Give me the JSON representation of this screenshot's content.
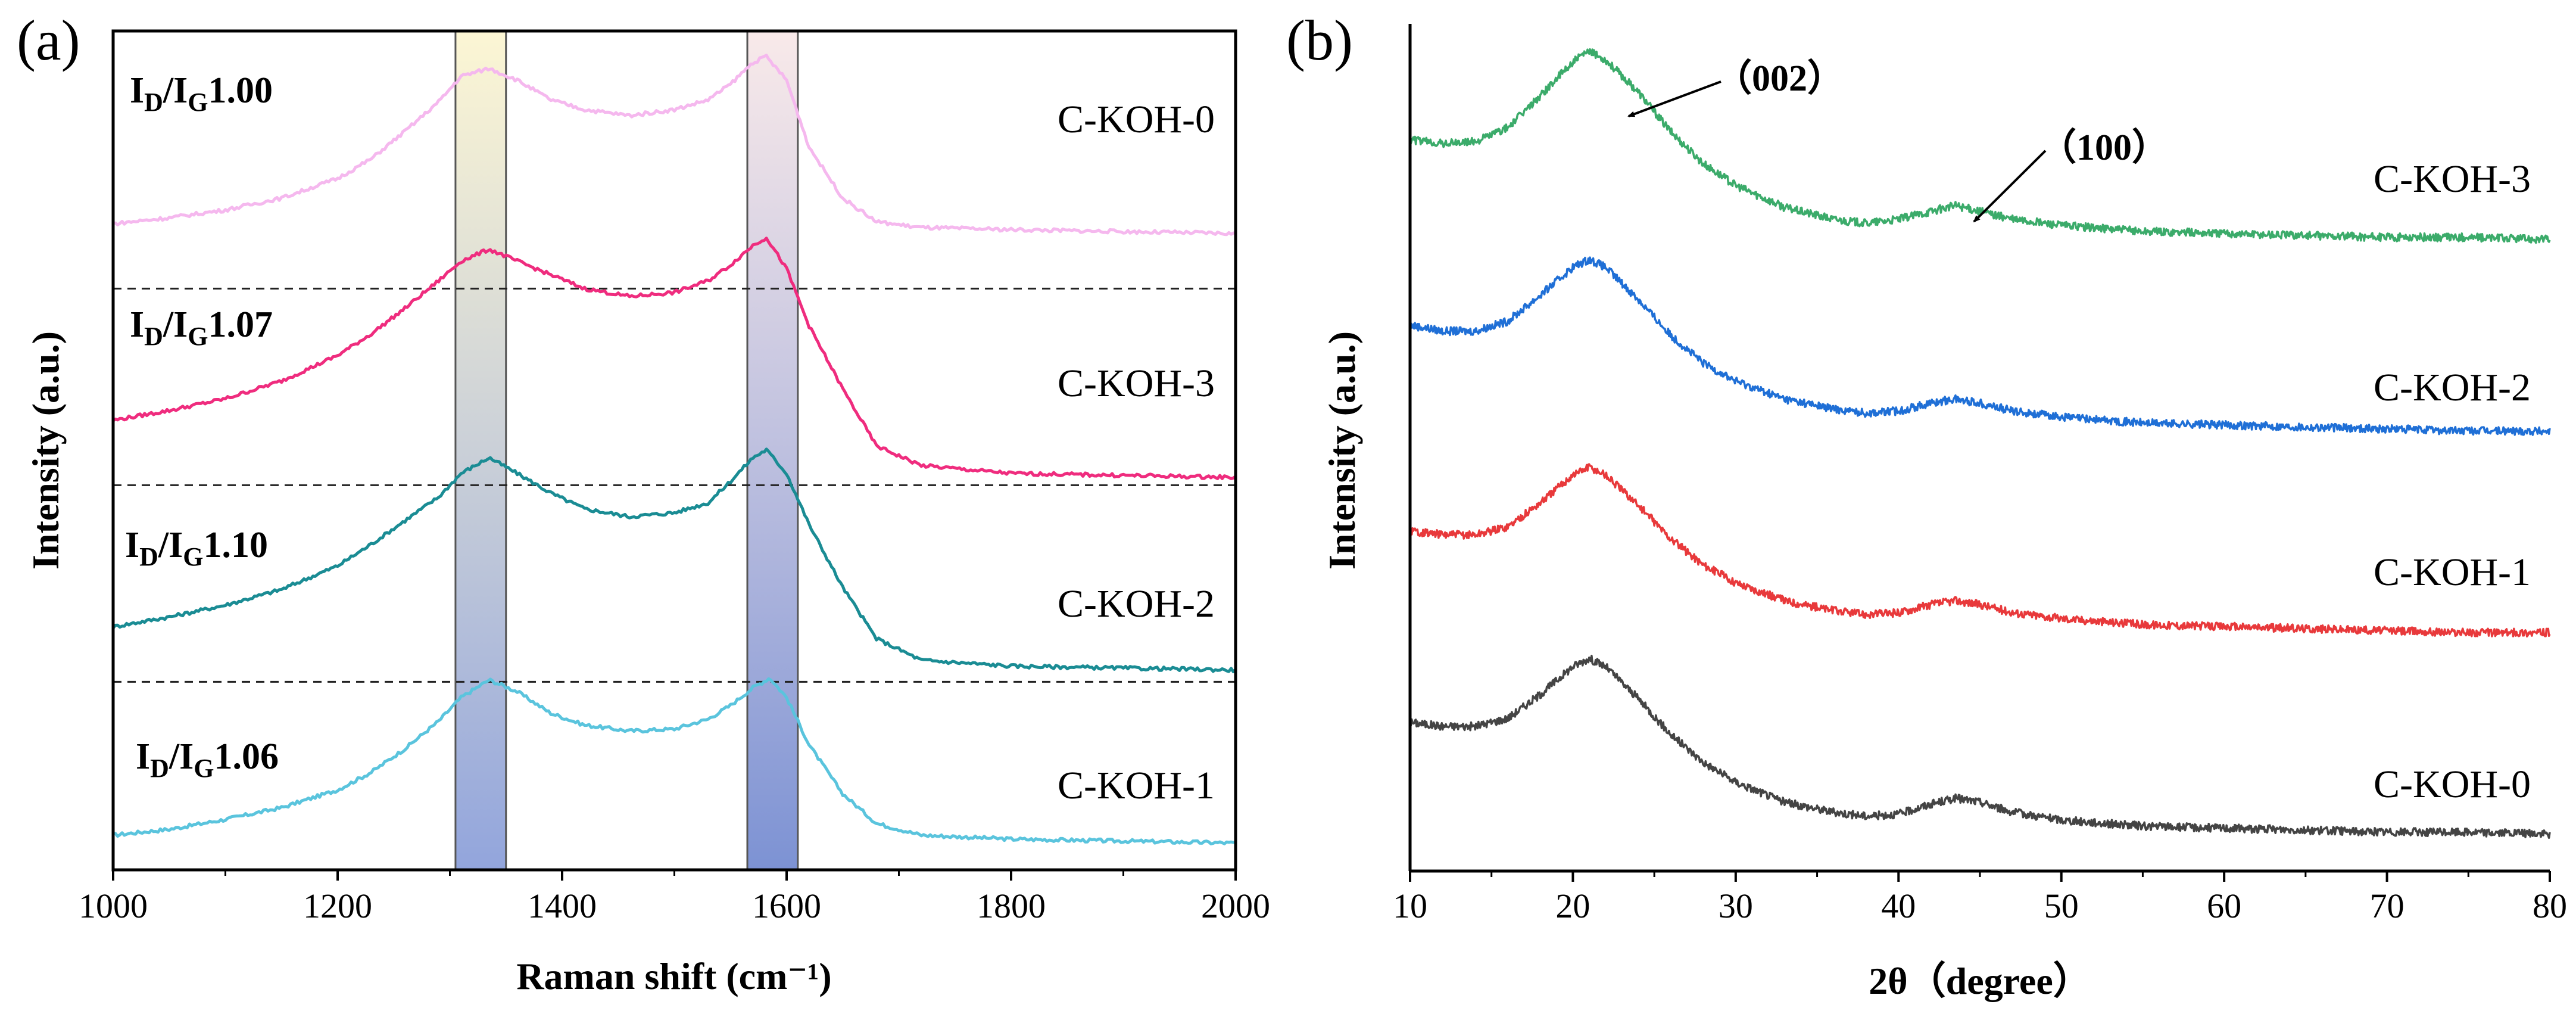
{
  "chart_data": [
    {
      "panel": "(a)",
      "type": "line",
      "xlabel": "Raman shift (cm⁻¹)",
      "ylabel": "Intensity (a.u.)",
      "xlim": [
        1000,
        2000
      ],
      "xticks": [
        "1000",
        "1200",
        "1400",
        "1600",
        "1800",
        "2000"
      ],
      "ylim": [
        0,
        4
      ],
      "grid": false,
      "legend": "none",
      "bands": [
        {
          "name": "D band",
          "from": 1305,
          "to": 1350
        },
        {
          "name": "G band",
          "from": 1565,
          "to": 1610
        }
      ],
      "baselines": [
        0.82,
        1.82,
        2.82
      ],
      "series": [
        {
          "name": "C-KOH-1",
          "ratio_prefix": "I",
          "ratio_sub1": "D",
          "ratio_mid": "/I",
          "ratio_sub2": "G",
          "ratio_value": "1.06",
          "color": "#5ac4dd",
          "x": [
            1000,
            1050,
            1100,
            1150,
            1200,
            1230,
            1260,
            1290,
            1310,
            1335,
            1360,
            1390,
            1420,
            1460,
            1500,
            1530,
            1550,
            1570,
            1585,
            1600,
            1620,
            1650,
            1680,
            1720,
            1800,
            1900,
            2000
          ],
          "y": [
            0.04,
            0.07,
            0.12,
            0.18,
            0.27,
            0.36,
            0.48,
            0.62,
            0.74,
            0.83,
            0.77,
            0.66,
            0.6,
            0.57,
            0.58,
            0.63,
            0.7,
            0.79,
            0.84,
            0.74,
            0.5,
            0.25,
            0.1,
            0.04,
            0.02,
            0.01,
            0.0
          ]
        },
        {
          "name": "C-KOH-2",
          "ratio_prefix": "I",
          "ratio_sub1": "D",
          "ratio_mid": "/I",
          "ratio_sub2": "G",
          "ratio_value": "1.10",
          "color": "#1a8c94",
          "x": [
            1000,
            1050,
            1100,
            1150,
            1200,
            1230,
            1260,
            1290,
            1310,
            1335,
            1360,
            1390,
            1420,
            1460,
            1500,
            1530,
            1550,
            1570,
            1582,
            1600,
            1620,
            1650,
            1680,
            1720,
            1800,
            1900,
            2000
          ],
          "y": [
            1.1,
            1.15,
            1.21,
            1.29,
            1.41,
            1.52,
            1.64,
            1.76,
            1.88,
            1.96,
            1.88,
            1.78,
            1.7,
            1.66,
            1.68,
            1.73,
            1.84,
            1.96,
            2.0,
            1.88,
            1.62,
            1.3,
            1.04,
            0.93,
            0.9,
            0.89,
            0.88
          ]
        },
        {
          "name": "C-KOH-3",
          "ratio_prefix": "I",
          "ratio_sub1": "D",
          "ratio_mid": "/I",
          "ratio_sub2": "G",
          "ratio_value": "1.07",
          "color": "#ef2c7e",
          "x": [
            1000,
            1050,
            1100,
            1150,
            1200,
            1230,
            1260,
            1290,
            1310,
            1335,
            1360,
            1390,
            1420,
            1460,
            1500,
            1530,
            1550,
            1570,
            1582,
            1600,
            1620,
            1650,
            1680,
            1720,
            1800,
            1900,
            2000
          ],
          "y": [
            2.15,
            2.2,
            2.26,
            2.35,
            2.48,
            2.59,
            2.72,
            2.86,
            2.96,
            3.02,
            2.96,
            2.89,
            2.82,
            2.78,
            2.8,
            2.86,
            2.94,
            3.04,
            3.08,
            2.92,
            2.63,
            2.31,
            2.02,
            1.92,
            1.88,
            1.87,
            1.86
          ]
        },
        {
          "name": "C-KOH-0",
          "ratio_prefix": "I",
          "ratio_sub1": "D",
          "ratio_mid": "/I",
          "ratio_sub2": "G",
          "ratio_value": "1.00",
          "color": "#f5b8ee",
          "x": [
            1000,
            1050,
            1100,
            1150,
            1200,
            1230,
            1260,
            1290,
            1310,
            1335,
            1360,
            1390,
            1420,
            1460,
            1500,
            1530,
            1550,
            1570,
            1582,
            1600,
            1620,
            1650,
            1680,
            1720,
            1800,
            1900,
            2000
          ],
          "y": [
            3.15,
            3.18,
            3.22,
            3.28,
            3.38,
            3.48,
            3.62,
            3.77,
            3.9,
            3.94,
            3.88,
            3.78,
            3.73,
            3.7,
            3.73,
            3.78,
            3.86,
            3.97,
            4.0,
            3.88,
            3.54,
            3.28,
            3.16,
            3.13,
            3.12,
            3.11,
            3.1
          ]
        }
      ]
    },
    {
      "panel": "(b)",
      "type": "line",
      "xlabel": "2θ（degree）",
      "ylabel": "Intensity (a.u.)",
      "xlim": [
        10,
        80
      ],
      "xticks": [
        "10",
        "20",
        "30",
        "40",
        "50",
        "60",
        "70",
        "80"
      ],
      "ylim": [
        0,
        4
      ],
      "grid": false,
      "legend": "none",
      "annotations": [
        {
          "text": "（002）",
          "x": 21.5,
          "series": "C-KOH-3"
        },
        {
          "text": "（100）",
          "x": 44.5,
          "series": "C-KOH-3"
        }
      ],
      "series": [
        {
          "name": "C-KOH-0",
          "color": "#444444",
          "x": [
            10,
            12,
            14,
            16,
            18,
            20,
            21,
            22,
            24,
            26,
            28,
            30,
            33,
            36,
            38,
            40,
            42,
            43.5,
            45,
            47,
            50,
            55,
            60,
            65,
            70,
            75,
            80
          ],
          "y": [
            0.56,
            0.54,
            0.54,
            0.58,
            0.7,
            0.84,
            0.88,
            0.84,
            0.68,
            0.5,
            0.36,
            0.26,
            0.16,
            0.11,
            0.09,
            0.1,
            0.15,
            0.18,
            0.16,
            0.11,
            0.07,
            0.04,
            0.03,
            0.02,
            0.01,
            0.01,
            0.0
          ]
        },
        {
          "name": "C-KOH-1",
          "color": "#e8393b",
          "x": [
            10,
            12,
            14,
            16,
            18,
            20,
            21,
            22,
            24,
            26,
            28,
            30,
            33,
            36,
            38,
            40,
            42,
            43.5,
            45,
            47,
            50,
            55,
            60,
            65,
            70,
            75,
            80
          ],
          "y": [
            1.52,
            1.5,
            1.5,
            1.54,
            1.66,
            1.8,
            1.84,
            1.8,
            1.65,
            1.48,
            1.35,
            1.26,
            1.17,
            1.12,
            1.1,
            1.11,
            1.15,
            1.17,
            1.15,
            1.11,
            1.08,
            1.05,
            1.04,
            1.03,
            1.02,
            1.01,
            1.01
          ]
        },
        {
          "name": "C-KOH-2",
          "color": "#1f6fd6",
          "x": [
            10,
            12,
            14,
            16,
            18,
            20,
            21,
            22,
            24,
            26,
            28,
            30,
            33,
            36,
            38,
            40,
            42,
            43.5,
            45,
            47,
            50,
            55,
            60,
            65,
            70,
            75,
            80
          ],
          "y": [
            2.55,
            2.52,
            2.52,
            2.57,
            2.7,
            2.84,
            2.88,
            2.84,
            2.68,
            2.5,
            2.36,
            2.27,
            2.18,
            2.13,
            2.11,
            2.12,
            2.16,
            2.18,
            2.16,
            2.12,
            2.09,
            2.06,
            2.05,
            2.04,
            2.03,
            2.02,
            2.02
          ]
        },
        {
          "name": "C-KOH-3",
          "color": "#3bab6a",
          "x": [
            10,
            12,
            14,
            16,
            18,
            20,
            21,
            22,
            24,
            26,
            28,
            30,
            33,
            36,
            38,
            40,
            42,
            43.5,
            45,
            47,
            50,
            55,
            60,
            65,
            70,
            75,
            80
          ],
          "y": [
            3.48,
            3.46,
            3.47,
            3.54,
            3.7,
            3.87,
            3.92,
            3.88,
            3.72,
            3.52,
            3.36,
            3.25,
            3.14,
            3.08,
            3.06,
            3.08,
            3.12,
            3.15,
            3.12,
            3.08,
            3.05,
            3.02,
            3.01,
            3.0,
            2.99,
            2.99,
            2.98
          ]
        }
      ]
    }
  ]
}
